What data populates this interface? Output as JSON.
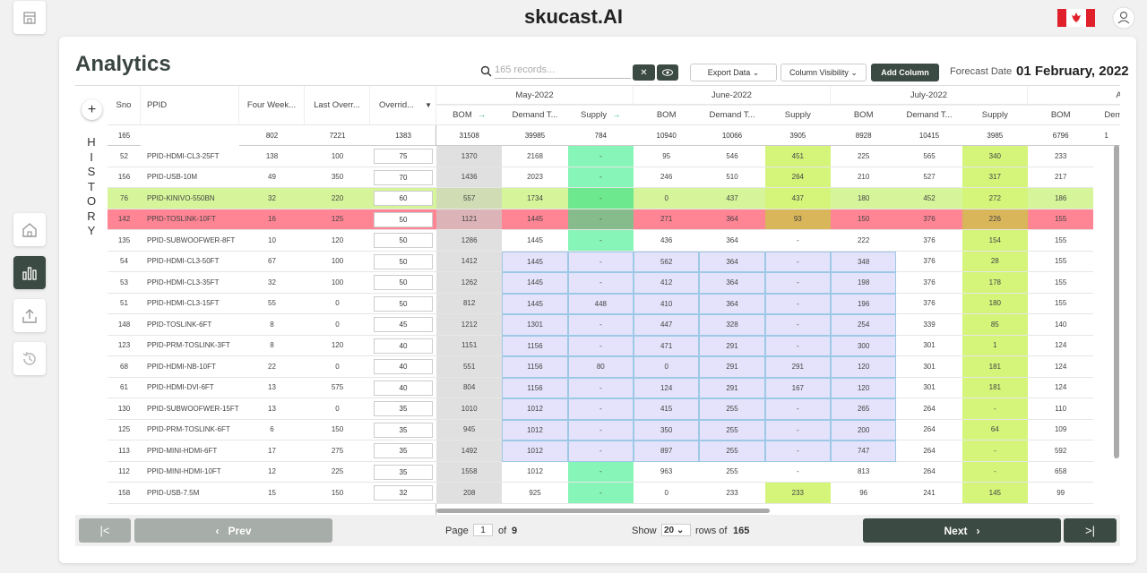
{
  "header": {
    "brand": "skucast.AI"
  },
  "page": {
    "title": "Analytics",
    "search_placeholder": "165 records...",
    "export": "Export Data",
    "visibility": "Column Visibility",
    "add_column": "Add Column",
    "forecast_label": "Forecast Date",
    "forecast_date": "01 February, 2022"
  },
  "table": {
    "add": "+",
    "history": "HISTORY",
    "fixed_headers": [
      "Sno",
      "PPID",
      "Four Week...",
      "Last Overr...",
      "Overrid..."
    ],
    "fixed_totals": [
      165,
      null,
      802,
      7221,
      1383
    ],
    "months": [
      "May-2022",
      "June-2022",
      "July-2022",
      "Augu"
    ],
    "sub_headers": [
      "BOM",
      "Demand T...",
      "Supply",
      "BOM",
      "Demand T...",
      "Supply",
      "BOM",
      "Demand T...",
      "Supply",
      "BOM",
      "Dem"
    ],
    "month_totals": [
      31508,
      39985,
      784,
      10940,
      10066,
      3905,
      8928,
      10415,
      3985,
      6796,
      1
    ],
    "rows": [
      [
        52,
        "PPID-HDMI-CL3-25FT",
        138,
        100,
        75,
        1370,
        2168,
        "-",
        95,
        546,
        451,
        225,
        565,
        340,
        233
      ],
      [
        156,
        "PPID-USB-10M",
        49,
        350,
        70,
        1436,
        2023,
        "-",
        246,
        510,
        264,
        210,
        527,
        317,
        217
      ],
      [
        76,
        "PPID-KINIVO-550BN",
        32,
        220,
        60,
        557,
        1734,
        "-",
        0,
        437,
        437,
        180,
        452,
        272,
        186
      ],
      [
        142,
        "PPID-TOSLINK-10FT",
        16,
        125,
        50,
        1121,
        1445,
        "-",
        271,
        364,
        93,
        150,
        376,
        226,
        155
      ],
      [
        135,
        "PPID-SUBWOOFWER-8FT",
        10,
        120,
        50,
        1286,
        1445,
        "-",
        436,
        364,
        "-",
        222,
        376,
        154,
        155
      ],
      [
        54,
        "PPID-HDMI-CL3-50FT",
        67,
        100,
        50,
        1412,
        1445,
        "-",
        562,
        364,
        "-",
        348,
        376,
        28,
        155
      ],
      [
        53,
        "PPID-HDMI-CL3-35FT",
        32,
        100,
        50,
        1262,
        1445,
        "-",
        412,
        364,
        "-",
        198,
        376,
        178,
        155
      ],
      [
        51,
        "PPID-HDMI-CL3-15FT",
        55,
        0,
        50,
        812,
        1445,
        448,
        410,
        364,
        "-",
        196,
        376,
        180,
        155
      ],
      [
        148,
        "PPID-TOSLINK-6FT",
        8,
        0,
        45,
        1212,
        1301,
        "-",
        447,
        328,
        "-",
        254,
        339,
        85,
        140
      ],
      [
        123,
        "PPID-PRM-TOSLINK-3FT",
        8,
        120,
        40,
        1151,
        1156,
        "-",
        471,
        291,
        "-",
        300,
        301,
        1,
        124
      ],
      [
        68,
        "PPID-HDMI-NB-10FT",
        22,
        0,
        40,
        551,
        1156,
        80,
        0,
        291,
        291,
        120,
        301,
        181,
        124
      ],
      [
        61,
        "PPID-HDMI-DVI-6FT",
        13,
        575,
        40,
        804,
        1156,
        "-",
        124,
        291,
        167,
        120,
        301,
        181,
        124
      ],
      [
        130,
        "PPID-SUBWOOFWER-15FT",
        13,
        0,
        35,
        1010,
        1012,
        "-",
        415,
        255,
        "-",
        265,
        264,
        "-",
        110
      ],
      [
        125,
        "PPID-PRM-TOSLINK-6FT",
        6,
        150,
        35,
        945,
        1012,
        "-",
        350,
        255,
        "-",
        200,
        264,
        64,
        109
      ],
      [
        113,
        "PPID-MINI-HDMI-6FT",
        17,
        275,
        35,
        1492,
        1012,
        "-",
        897,
        255,
        "-",
        747,
        264,
        "-",
        592
      ],
      [
        112,
        "PPID-MINI-HDMI-10FT",
        12,
        225,
        35,
        1558,
        1012,
        "-",
        963,
        255,
        "-",
        813,
        264,
        "-",
        658
      ],
      [
        158,
        "PPID-USB-7.5M",
        15,
        150,
        32,
        208,
        925,
        "-",
        0,
        233,
        233,
        96,
        241,
        145,
        99
      ]
    ]
  },
  "footer": {
    "prev": "Prev",
    "page_label": "Page",
    "page": 1,
    "of": "of",
    "pages": 9,
    "show": "Show",
    "page_size": 20,
    "rows_of": "rows of",
    "total": 165,
    "next": "Next"
  }
}
